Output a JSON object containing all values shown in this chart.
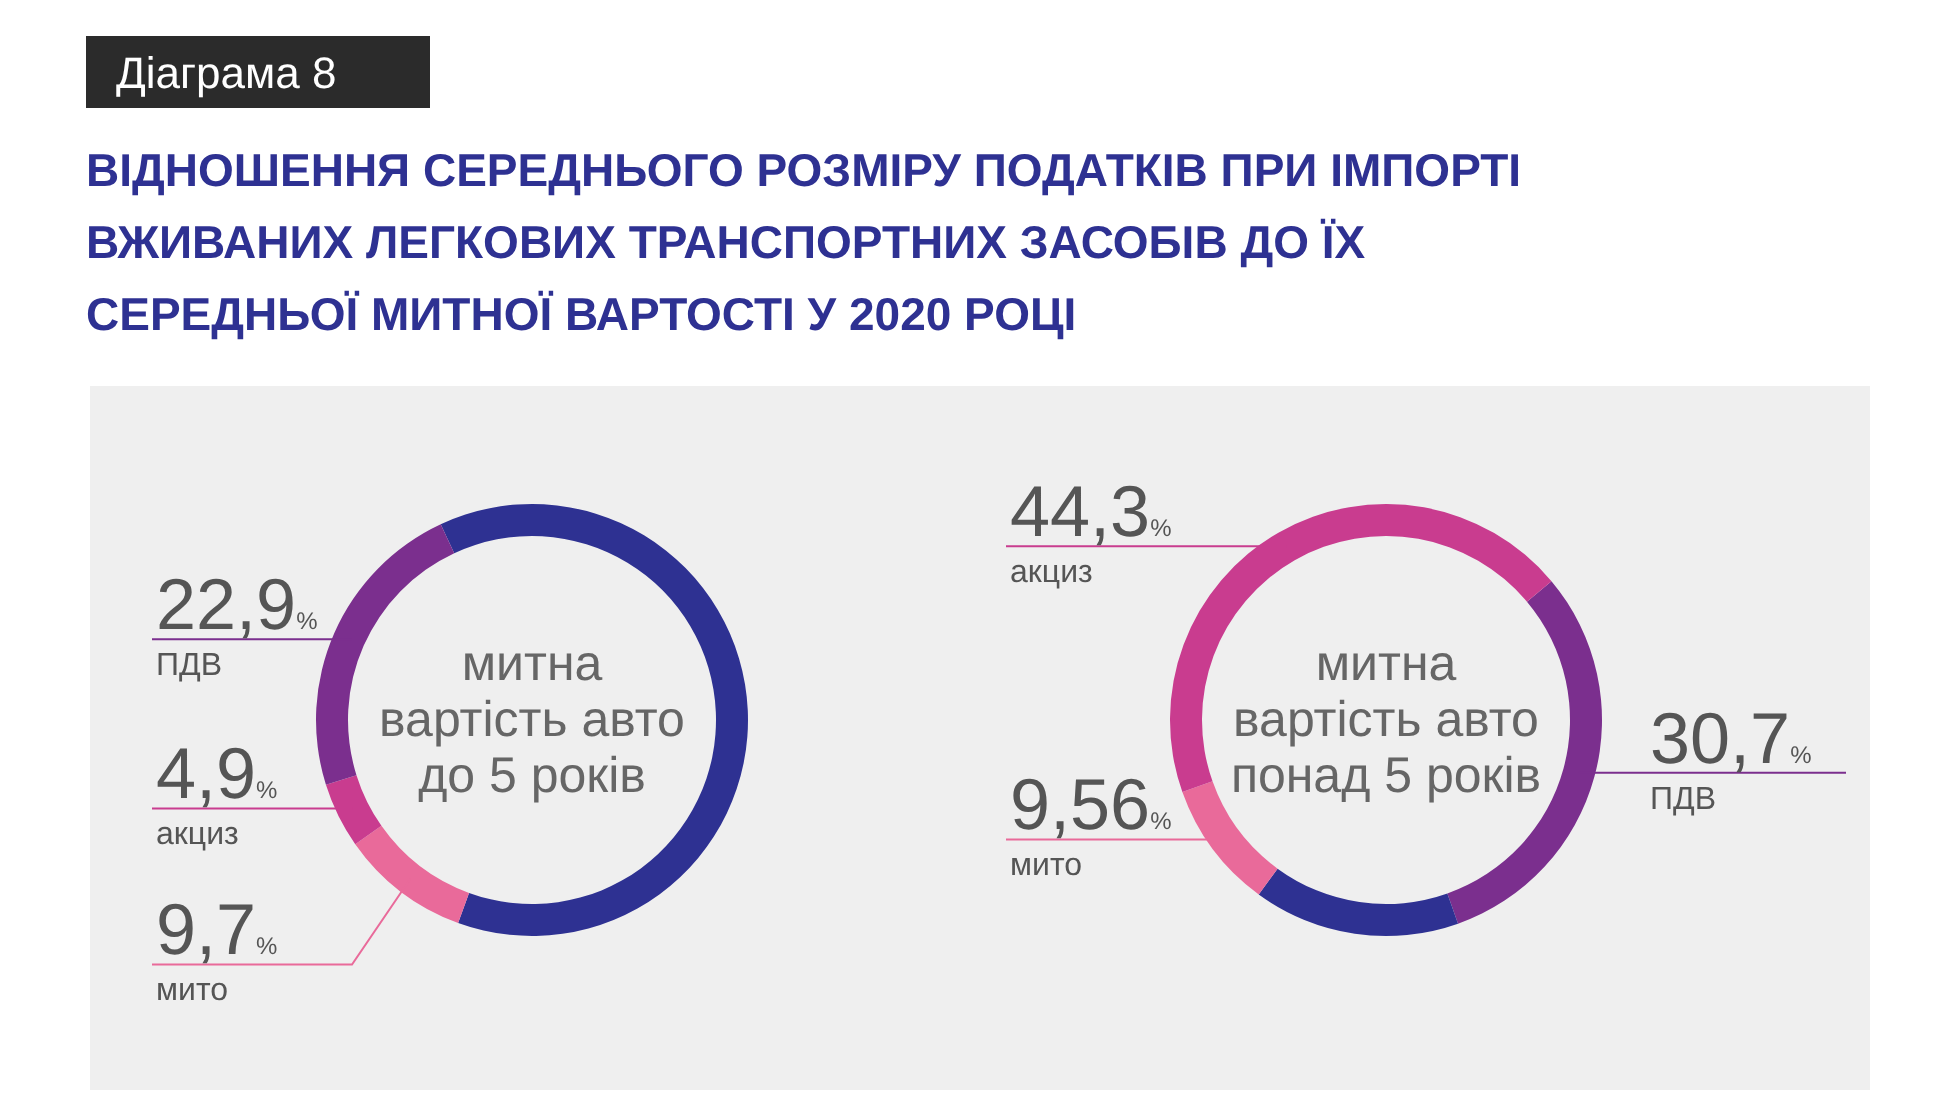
{
  "chart_data": [
    {
      "type": "donut",
      "title": "ВІДНОШЕННЯ СЕРЕДНЬОГО РОЗМІРУ ПОДАТКІВ ПРИ ІМПОРТІ ВЖИВАНИХ ЛЕГКОВИХ ТРАНСПОРТНИХ ЗАСОБІВ ДО ЇХ СЕРЕДНЬОЇ МИТНОЇ ВАРТОСТІ У 2020 РОЦІ",
      "subtitle": "митна вартість авто до 5 років",
      "annotations": [
        "Діаграма 8"
      ],
      "categories": [
        null,
        "мито",
        "акциз",
        "ПДВ"
      ],
      "values": [
        62.5,
        9.7,
        4.9,
        22.9
      ],
      "colors": [
        "#2e3192",
        "#e96a9a",
        "#c93c8f",
        "#7b2f8e"
      ],
      "value_labels": [
        null,
        "9,7%",
        "4,9%",
        "22,9%"
      ]
    },
    {
      "type": "donut",
      "subtitle": "митна вартість авто понад 5 років",
      "categories": [
        "ПДВ",
        null,
        "мито",
        "акциз"
      ],
      "values": [
        30.7,
        15.44,
        9.56,
        44.3
      ],
      "colors": [
        "#7b2f8e",
        "#2e3192",
        "#e96a9a",
        "#c93c8f"
      ],
      "value_labels": [
        "30,7%",
        null,
        "9,56%",
        "44,3%"
      ]
    }
  ]
}
